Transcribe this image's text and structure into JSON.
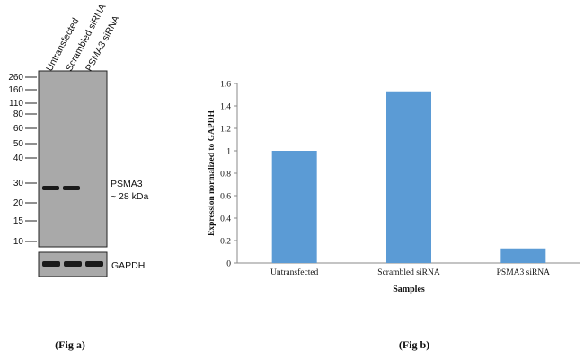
{
  "fig_a": {
    "caption": "(Fig a)",
    "lanes": [
      "Untransfected",
      "Scrambled siRNA",
      "PSMA3 siRNA"
    ],
    "markers": [
      "260",
      "160",
      "110",
      "80",
      "60",
      "50",
      "40",
      "30",
      "20",
      "15",
      "10"
    ],
    "band_label": "PSMA3",
    "band_size": "~ 28 kDa",
    "loading_control": "GAPDH",
    "colors": {
      "membrane": "#a9a9a9",
      "band": "#1a1a1a"
    }
  },
  "fig_b": {
    "caption": "(Fig b)"
  },
  "chart_data": {
    "type": "bar",
    "categories": [
      "Untransfected",
      "Scrambled siRNA",
      "PSMA3 siRNA"
    ],
    "values": [
      1.0,
      1.53,
      0.13
    ],
    "xlabel": "Samples",
    "ylabel": "Expression  normalized to GAPDH",
    "ylim": [
      0,
      1.6
    ],
    "yticks": [
      "0",
      "0.2",
      "0.4",
      "0.6",
      "0.8",
      "1",
      "1.2",
      "1.4",
      "1.6"
    ],
    "grid": false,
    "bar_color": "#5b9bd5"
  }
}
